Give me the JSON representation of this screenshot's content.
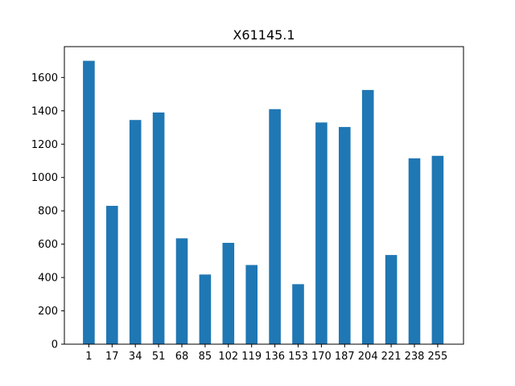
{
  "chart_data": {
    "type": "bar",
    "title": "X61145.1",
    "xlabel": "",
    "ylabel": "",
    "categories": [
      "1",
      "17",
      "34",
      "51",
      "68",
      "85",
      "102",
      "119",
      "136",
      "153",
      "170",
      "187",
      "204",
      "221",
      "238",
      "255"
    ],
    "values": [
      1700,
      830,
      1345,
      1390,
      635,
      418,
      608,
      475,
      1410,
      360,
      1330,
      1303,
      1525,
      535,
      1115,
      1130
    ],
    "ylim": [
      0,
      1785
    ],
    "yticks": [
      0,
      200,
      400,
      600,
      800,
      1000,
      1200,
      1400,
      1600
    ],
    "grid": false,
    "colors": {
      "bar": "#1f77b4"
    }
  }
}
